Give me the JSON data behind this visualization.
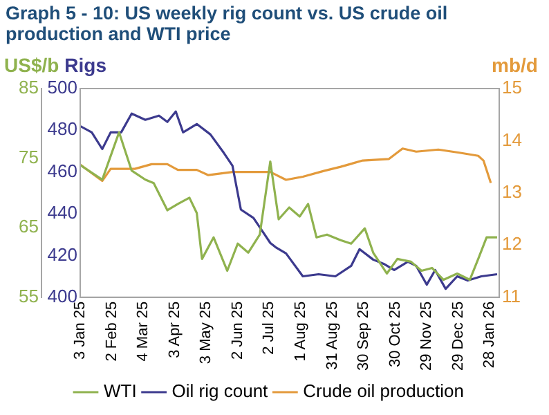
{
  "chart_data": {
    "type": "line",
    "title": "Graph 5 - 10: US weekly rig count vs. US crude oil production and WTI price",
    "ylabel": "US$/b",
    "y2label": "Rigs",
    "y3label": "mb/d",
    "xlim": [
      "2025-01-03",
      "2026-02-06"
    ],
    "xticks": [
      {
        "value": "2025-01-03",
        "label": "3 Jan 25"
      },
      {
        "value": "2025-02-02",
        "label": "2 Feb 25"
      },
      {
        "value": "2025-03-04",
        "label": "4 Mar 25"
      },
      {
        "value": "2025-04-03",
        "label": "3 Apr 25"
      },
      {
        "value": "2025-05-03",
        "label": "3 May 25"
      },
      {
        "value": "2025-06-02",
        "label": "2 Jun 25"
      },
      {
        "value": "2025-07-02",
        "label": "2 Jul 25"
      },
      {
        "value": "2025-08-01",
        "label": "1 Aug 25"
      },
      {
        "value": "2025-08-31",
        "label": "31 Aug 25"
      },
      {
        "value": "2025-09-30",
        "label": "30 Sep 25"
      },
      {
        "value": "2025-10-30",
        "label": "30 Oct 25"
      },
      {
        "value": "2025-11-29",
        "label": "29 Nov 25"
      },
      {
        "value": "2025-12-29",
        "label": "29 Dec 25"
      },
      {
        "value": "2026-01-28",
        "label": "28 Jan 26"
      }
    ],
    "ylim": [
      55,
      85
    ],
    "yticks": [
      55,
      65,
      75,
      85
    ],
    "y2lim": [
      400,
      500
    ],
    "y2ticks": [
      400,
      420,
      440,
      460,
      480,
      500
    ],
    "y3lim": [
      11,
      15
    ],
    "y3ticks": [
      11,
      12,
      13,
      14,
      15
    ],
    "grid": false,
    "legend": "bottom",
    "marker": "none",
    "line_style": "solid",
    "series": [
      {
        "name": "WTI",
        "color": "#8fb24e",
        "x": [
          "2025-01-03",
          "2025-01-24",
          "2025-02-09",
          "2025-02-21",
          "2025-03-06",
          "2025-03-14",
          "2025-03-27",
          "2025-04-06",
          "2025-04-17",
          "2025-04-24",
          "2025-04-29",
          "2025-05-10",
          "2025-05-23",
          "2025-06-02",
          "2025-06-12",
          "2025-06-23",
          "2025-07-03",
          "2025-07-11",
          "2025-07-21",
          "2025-07-31",
          "2025-08-08",
          "2025-08-16",
          "2025-08-26",
          "2025-09-08",
          "2025-09-18",
          "2025-10-01",
          "2025-10-09",
          "2025-10-22",
          "2025-11-01",
          "2025-11-14",
          "2025-11-24",
          "2025-12-04",
          "2025-12-15",
          "2025-12-28",
          "2026-01-09",
          "2026-01-17",
          "2026-01-25",
          "2026-02-04"
        ],
        "values": [
          74.0,
          71.9,
          78.7,
          73.2,
          71.9,
          71.4,
          67.5,
          68.4,
          69.3,
          67.1,
          60.5,
          63.6,
          58.8,
          62.7,
          61.4,
          64.0,
          74.5,
          66.2,
          67.9,
          66.6,
          68.4,
          63.6,
          64.0,
          63.2,
          62.7,
          64.9,
          61.4,
          58.4,
          60.5,
          60.1,
          58.8,
          59.2,
          57.5,
          58.4,
          57.5,
          60.5,
          63.6,
          63.6
        ]
      },
      {
        "name": "Oil rig count",
        "color": "#3c3a8e",
        "axis": "y2",
        "x": [
          "2025-01-03",
          "2025-01-14",
          "2025-01-24",
          "2025-02-01",
          "2025-02-11",
          "2025-02-21",
          "2025-03-06",
          "2025-03-19",
          "2025-03-27",
          "2025-04-04",
          "2025-04-11",
          "2025-04-24",
          "2025-05-07",
          "2025-05-20",
          "2025-05-28",
          "2025-06-05",
          "2025-06-17",
          "2025-06-25",
          "2025-07-03",
          "2025-07-08",
          "2025-07-18",
          "2025-08-03",
          "2025-08-18",
          "2025-09-03",
          "2025-09-18",
          "2025-09-26",
          "2025-10-09",
          "2025-10-19",
          "2025-10-29",
          "2025-11-11",
          "2025-11-19",
          "2025-11-29",
          "2025-12-07",
          "2025-12-17",
          "2025-12-28",
          "2026-01-07",
          "2026-01-20",
          "2026-02-04"
        ],
        "values": [
          482,
          479,
          471,
          479,
          479,
          488,
          485,
          487,
          484,
          489,
          479,
          483,
          478,
          469,
          463,
          442,
          438,
          432,
          426,
          424,
          421,
          410,
          411,
          410,
          415,
          423,
          418,
          416,
          413,
          417,
          415,
          406,
          413,
          404,
          410,
          408,
          410,
          411
        ]
      },
      {
        "name": "Crude oil production",
        "color": "#e39a3b",
        "axis": "y3",
        "x": [
          "2025-01-03",
          "2025-01-24",
          "2025-02-01",
          "2025-02-24",
          "2025-03-12",
          "2025-03-27",
          "2025-04-06",
          "2025-04-24",
          "2025-05-05",
          "2025-05-28",
          "2025-07-03",
          "2025-07-18",
          "2025-08-03",
          "2025-08-23",
          "2025-09-08",
          "2025-09-29",
          "2025-10-24",
          "2025-11-06",
          "2025-11-19",
          "2025-12-10",
          "2025-12-30",
          "2026-01-17",
          "2026-01-22",
          "2026-01-29"
        ],
        "values": [
          13.54,
          13.23,
          13.46,
          13.46,
          13.55,
          13.55,
          13.44,
          13.44,
          13.34,
          13.4,
          13.4,
          13.25,
          13.31,
          13.42,
          13.5,
          13.62,
          13.65,
          13.85,
          13.79,
          13.83,
          13.77,
          13.71,
          13.62,
          13.19
        ]
      }
    ]
  }
}
